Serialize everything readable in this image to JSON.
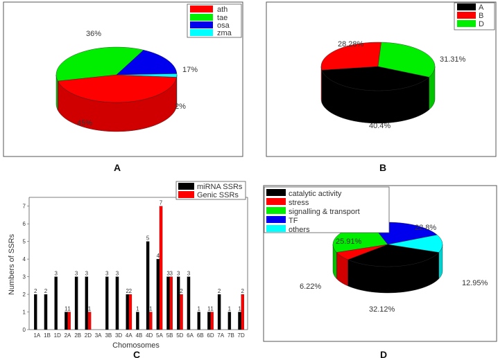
{
  "panels": {
    "A": "A",
    "B": "B",
    "C": "C",
    "D": "D"
  },
  "colors": {
    "red": "#ff0000",
    "green": "#00ee00",
    "blue": "#0000ee",
    "cyan": "#00ffff",
    "black": "#000000"
  },
  "chart_data": [
    {
      "id": "A",
      "type": "pie",
      "legend": [
        "ath",
        "tae",
        "osa",
        "zma"
      ],
      "labels": [
        "45%",
        "36%",
        "17%",
        "2%"
      ],
      "values": [
        45,
        36,
        17,
        2
      ]
    },
    {
      "id": "B",
      "type": "pie",
      "legend": [
        "A",
        "B",
        "D"
      ],
      "labels": [
        "40.4%",
        "28.28%",
        "31.31%"
      ],
      "values": [
        40.4,
        28.28,
        31.31
      ]
    },
    {
      "id": "C",
      "type": "bar",
      "xlabel": "Chomosomes",
      "ylabel": "Numbers of SSRs",
      "ylim": [
        0,
        7.5
      ],
      "yticks": [
        "0",
        "1",
        "2",
        "3",
        "4",
        "5",
        "6",
        "7"
      ],
      "categories": [
        "1A",
        "1B",
        "1D",
        "2A",
        "2B",
        "2D",
        "3A",
        "3B",
        "3D",
        "4A",
        "4B",
        "4D",
        "5A",
        "5B",
        "5D",
        "6A",
        "6B",
        "6D",
        "7A",
        "7B",
        "7D"
      ],
      "series": [
        {
          "name": "miRNA SSRs",
          "values": [
            2,
            2,
            3,
            1,
            3,
            3,
            0,
            3,
            3,
            2,
            1,
            5,
            4,
            3,
            3,
            3,
            1,
            1,
            2,
            1,
            1
          ]
        },
        {
          "name": "Genic SSRs",
          "values": [
            0,
            0,
            0,
            1,
            0,
            1,
            0,
            0,
            0,
            2,
            0,
            1,
            7,
            3,
            2,
            0,
            0,
            1,
            0,
            0,
            2
          ]
        }
      ],
      "data_labels": [
        [
          "2",
          "2",
          "3",
          "1",
          "3",
          "3",
          "",
          "3",
          "3",
          "2",
          "1",
          "5",
          "4",
          "3",
          "3",
          "3",
          "1",
          "1",
          "2",
          "1",
          "1"
        ],
        [
          "",
          "",
          "",
          "1",
          "",
          "1",
          "",
          "",
          "",
          "2",
          "",
          "1",
          "7",
          "3",
          "2",
          "",
          "",
          "1",
          "",
          "",
          "2"
        ]
      ]
    },
    {
      "id": "D",
      "type": "pie",
      "legend": [
        "catalytic  activity",
        "stress",
        "signalling & transport",
        "TF",
        "others"
      ],
      "labels": [
        "32.12%",
        "6.22%",
        "25.91%",
        "22.8%",
        "12.95%"
      ],
      "values": [
        32.12,
        6.22,
        25.91,
        22.8,
        12.95
      ]
    }
  ]
}
